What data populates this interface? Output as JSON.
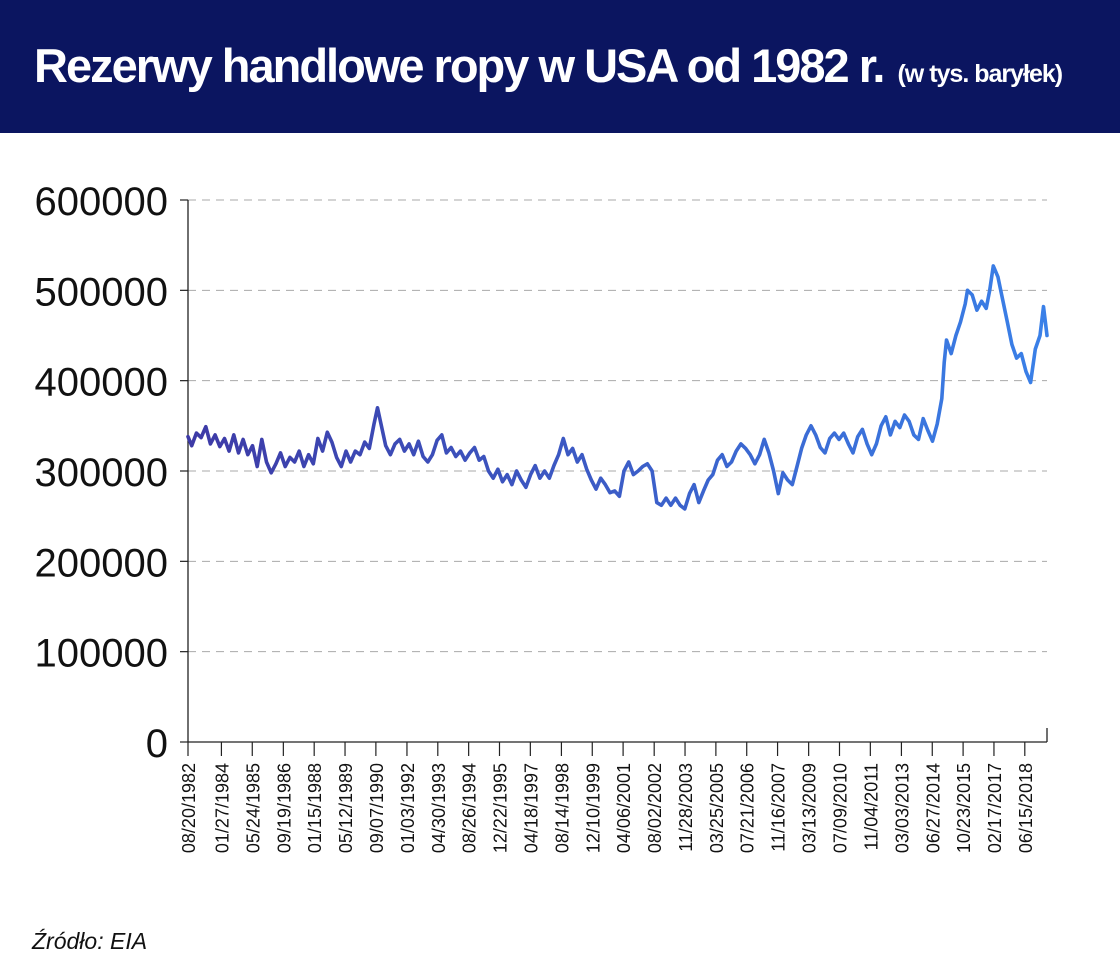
{
  "header": {
    "title": "Rezerwy  handlowe ropy w USA od 1982 r.",
    "subtitle": "(w tys. baryłek)"
  },
  "source": "Źródło: EIA",
  "colors": {
    "header_bg": "#0b1560",
    "line_start": "#3d3aa6",
    "line_end": "#3a80e8",
    "grid": "#aaaaaa"
  },
  "chart_data": {
    "type": "line",
    "title": "Rezerwy  handlowe ropy w USA od 1982 r.",
    "subtitle": "(w tys. baryłek)",
    "xlabel": "",
    "ylabel": "",
    "ylim": [
      0,
      600000
    ],
    "yticks": [
      0,
      100000,
      200000,
      300000,
      400000,
      500000,
      600000
    ],
    "ytick_labels": [
      "0",
      "100000",
      "200000",
      "300000",
      "400000",
      "500000",
      "600000"
    ],
    "grid": "horizontal dashed",
    "xrange": [
      1982.64,
      2019.4
    ],
    "xticks": [
      {
        "label": "08/20/1982",
        "t": 1982.64
      },
      {
        "label": "01/27/1984",
        "t": 1984.07
      },
      {
        "label": "05/24/1985",
        "t": 1985.39
      },
      {
        "label": "09/19/1986",
        "t": 1986.72
      },
      {
        "label": "01/15/1988",
        "t": 1988.04
      },
      {
        "label": "05/12/1989",
        "t": 1989.36
      },
      {
        "label": "09/07/1990",
        "t": 1990.68
      },
      {
        "label": "01/03/1992",
        "t": 1992.01
      },
      {
        "label": "04/30/1993",
        "t": 1993.33
      },
      {
        "label": "08/26/1994",
        "t": 1994.65
      },
      {
        "label": "12/22/1995",
        "t": 1995.97
      },
      {
        "label": "04/18/1997",
        "t": 1997.29
      },
      {
        "label": "08/14/1998",
        "t": 1998.62
      },
      {
        "label": "12/10/1999",
        "t": 1999.94
      },
      {
        "label": "04/06/2001",
        "t": 2001.26
      },
      {
        "label": "08/02/2002",
        "t": 2002.59
      },
      {
        "label": "11/28/2003",
        "t": 2003.91
      },
      {
        "label": "03/25/2005",
        "t": 2005.23
      },
      {
        "label": "07/21/2006",
        "t": 2006.55
      },
      {
        "label": "11/16/2007",
        "t": 2007.87
      },
      {
        "label": "03/13/2009",
        "t": 2009.2
      },
      {
        "label": "07/09/2010",
        "t": 2010.52
      },
      {
        "label": "11/04/2011",
        "t": 2011.84
      },
      {
        "label": "03/03/2013",
        "t": 2013.17
      },
      {
        "label": "06/27/2014",
        "t": 2014.49
      },
      {
        "label": "10/23/2015",
        "t": 2015.81
      },
      {
        "label": "02/17/2017",
        "t": 2017.13
      },
      {
        "label": "06/15/2018",
        "t": 2018.45
      }
    ],
    "series": [
      {
        "name": "Rezerwy handlowe ropy (tys. baryłek)",
        "points": [
          [
            1982.64,
            338000
          ],
          [
            1982.8,
            328000
          ],
          [
            1983.0,
            342000
          ],
          [
            1983.2,
            337000
          ],
          [
            1983.4,
            349000
          ],
          [
            1983.6,
            330000
          ],
          [
            1983.8,
            340000
          ],
          [
            1984.0,
            327000
          ],
          [
            1984.2,
            336000
          ],
          [
            1984.4,
            322000
          ],
          [
            1984.6,
            340000
          ],
          [
            1984.8,
            320000
          ],
          [
            1985.0,
            335000
          ],
          [
            1985.2,
            318000
          ],
          [
            1985.4,
            328000
          ],
          [
            1985.6,
            305000
          ],
          [
            1985.8,
            335000
          ],
          [
            1986.0,
            310000
          ],
          [
            1986.2,
            298000
          ],
          [
            1986.4,
            308000
          ],
          [
            1986.6,
            320000
          ],
          [
            1986.8,
            305000
          ],
          [
            1987.0,
            315000
          ],
          [
            1987.2,
            310000
          ],
          [
            1987.4,
            322000
          ],
          [
            1987.6,
            305000
          ],
          [
            1987.8,
            318000
          ],
          [
            1988.0,
            308000
          ],
          [
            1988.2,
            336000
          ],
          [
            1988.4,
            322000
          ],
          [
            1988.6,
            343000
          ],
          [
            1988.8,
            332000
          ],
          [
            1989.0,
            315000
          ],
          [
            1989.2,
            305000
          ],
          [
            1989.4,
            322000
          ],
          [
            1989.6,
            310000
          ],
          [
            1989.8,
            322000
          ],
          [
            1990.0,
            318000
          ],
          [
            1990.2,
            332000
          ],
          [
            1990.4,
            325000
          ],
          [
            1990.6,
            352000
          ],
          [
            1990.75,
            370000
          ],
          [
            1990.9,
            352000
          ],
          [
            1991.1,
            328000
          ],
          [
            1991.3,
            318000
          ],
          [
            1991.5,
            330000
          ],
          [
            1991.7,
            335000
          ],
          [
            1991.9,
            322000
          ],
          [
            1992.1,
            330000
          ],
          [
            1992.3,
            318000
          ],
          [
            1992.5,
            333000
          ],
          [
            1992.7,
            316000
          ],
          [
            1992.9,
            310000
          ],
          [
            1993.1,
            318000
          ],
          [
            1993.3,
            334000
          ],
          [
            1993.5,
            340000
          ],
          [
            1993.7,
            320000
          ],
          [
            1993.9,
            326000
          ],
          [
            1994.1,
            316000
          ],
          [
            1994.3,
            322000
          ],
          [
            1994.5,
            312000
          ],
          [
            1994.7,
            320000
          ],
          [
            1994.9,
            326000
          ],
          [
            1995.1,
            312000
          ],
          [
            1995.3,
            316000
          ],
          [
            1995.5,
            300000
          ],
          [
            1995.7,
            292000
          ],
          [
            1995.9,
            302000
          ],
          [
            1996.1,
            288000
          ],
          [
            1996.3,
            296000
          ],
          [
            1996.5,
            285000
          ],
          [
            1996.7,
            300000
          ],
          [
            1996.9,
            290000
          ],
          [
            1997.1,
            282000
          ],
          [
            1997.3,
            296000
          ],
          [
            1997.5,
            306000
          ],
          [
            1997.7,
            292000
          ],
          [
            1997.9,
            300000
          ],
          [
            1998.1,
            292000
          ],
          [
            1998.3,
            306000
          ],
          [
            1998.5,
            318000
          ],
          [
            1998.7,
            336000
          ],
          [
            1998.9,
            318000
          ],
          [
            1999.1,
            325000
          ],
          [
            1999.3,
            310000
          ],
          [
            1999.5,
            318000
          ],
          [
            1999.7,
            302000
          ],
          [
            1999.9,
            290000
          ],
          [
            2000.1,
            280000
          ],
          [
            2000.3,
            292000
          ],
          [
            2000.5,
            285000
          ],
          [
            2000.7,
            276000
          ],
          [
            2000.9,
            278000
          ],
          [
            2001.1,
            272000
          ],
          [
            2001.3,
            300000
          ],
          [
            2001.5,
            310000
          ],
          [
            2001.7,
            296000
          ],
          [
            2001.9,
            300000
          ],
          [
            2002.1,
            305000
          ],
          [
            2002.3,
            308000
          ],
          [
            2002.5,
            300000
          ],
          [
            2002.7,
            265000
          ],
          [
            2002.9,
            262000
          ],
          [
            2003.1,
            270000
          ],
          [
            2003.3,
            262000
          ],
          [
            2003.5,
            270000
          ],
          [
            2003.7,
            262000
          ],
          [
            2003.9,
            258000
          ],
          [
            2004.1,
            275000
          ],
          [
            2004.3,
            285000
          ],
          [
            2004.5,
            265000
          ],
          [
            2004.7,
            278000
          ],
          [
            2004.9,
            290000
          ],
          [
            2005.1,
            296000
          ],
          [
            2005.3,
            312000
          ],
          [
            2005.5,
            318000
          ],
          [
            2005.7,
            305000
          ],
          [
            2005.9,
            310000
          ],
          [
            2006.1,
            322000
          ],
          [
            2006.3,
            330000
          ],
          [
            2006.5,
            325000
          ],
          [
            2006.7,
            318000
          ],
          [
            2006.9,
            308000
          ],
          [
            2007.1,
            318000
          ],
          [
            2007.3,
            335000
          ],
          [
            2007.5,
            320000
          ],
          [
            2007.7,
            300000
          ],
          [
            2007.9,
            275000
          ],
          [
            2008.1,
            298000
          ],
          [
            2008.3,
            290000
          ],
          [
            2008.5,
            285000
          ],
          [
            2008.7,
            305000
          ],
          [
            2008.9,
            325000
          ],
          [
            2009.1,
            340000
          ],
          [
            2009.3,
            350000
          ],
          [
            2009.5,
            340000
          ],
          [
            2009.7,
            326000
          ],
          [
            2009.9,
            320000
          ],
          [
            2010.1,
            336000
          ],
          [
            2010.3,
            342000
          ],
          [
            2010.5,
            335000
          ],
          [
            2010.7,
            342000
          ],
          [
            2010.9,
            330000
          ],
          [
            2011.1,
            320000
          ],
          [
            2011.3,
            338000
          ],
          [
            2011.5,
            346000
          ],
          [
            2011.7,
            330000
          ],
          [
            2011.9,
            318000
          ],
          [
            2012.1,
            330000
          ],
          [
            2012.3,
            350000
          ],
          [
            2012.5,
            360000
          ],
          [
            2012.7,
            340000
          ],
          [
            2012.9,
            355000
          ],
          [
            2013.1,
            348000
          ],
          [
            2013.3,
            362000
          ],
          [
            2013.5,
            355000
          ],
          [
            2013.7,
            340000
          ],
          [
            2013.9,
            335000
          ],
          [
            2014.1,
            358000
          ],
          [
            2014.3,
            345000
          ],
          [
            2014.5,
            333000
          ],
          [
            2014.7,
            352000
          ],
          [
            2014.9,
            380000
          ],
          [
            2015.0,
            420000
          ],
          [
            2015.1,
            445000
          ],
          [
            2015.3,
            430000
          ],
          [
            2015.5,
            450000
          ],
          [
            2015.7,
            465000
          ],
          [
            2015.9,
            485000
          ],
          [
            2016.0,
            500000
          ],
          [
            2016.2,
            495000
          ],
          [
            2016.4,
            478000
          ],
          [
            2016.6,
            488000
          ],
          [
            2016.8,
            480000
          ],
          [
            2016.95,
            500000
          ],
          [
            2017.1,
            527000
          ],
          [
            2017.3,
            515000
          ],
          [
            2017.5,
            490000
          ],
          [
            2017.7,
            465000
          ],
          [
            2017.9,
            440000
          ],
          [
            2018.1,
            425000
          ],
          [
            2018.3,
            430000
          ],
          [
            2018.5,
            410000
          ],
          [
            2018.7,
            398000
          ],
          [
            2018.9,
            435000
          ],
          [
            2019.1,
            450000
          ],
          [
            2019.25,
            482000
          ],
          [
            2019.4,
            450000
          ]
        ]
      }
    ]
  }
}
